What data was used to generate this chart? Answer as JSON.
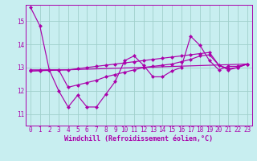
{
  "title": "",
  "xlabel": "Windchill (Refroidissement éolien,°C)",
  "background_color": "#c8eef0",
  "grid_color": "#a0d0cc",
  "line_color": "#aa00aa",
  "xlim": [
    -0.5,
    23.5
  ],
  "ylim": [
    10.5,
    15.7
  ],
  "yticks": [
    11,
    12,
    13,
    14,
    15
  ],
  "xticks": [
    0,
    1,
    2,
    3,
    4,
    5,
    6,
    7,
    8,
    9,
    10,
    11,
    12,
    13,
    14,
    15,
    16,
    17,
    18,
    19,
    20,
    21,
    22,
    23
  ],
  "series1_x": [
    0,
    1,
    2,
    3,
    4,
    5,
    6,
    7,
    8,
    9,
    10,
    11,
    12,
    13,
    14,
    15,
    16,
    17,
    18,
    19,
    20,
    21,
    22,
    23
  ],
  "series1_y": [
    15.6,
    14.8,
    12.9,
    12.0,
    11.3,
    11.8,
    11.3,
    11.3,
    11.85,
    12.4,
    13.3,
    13.5,
    13.1,
    12.6,
    12.6,
    12.85,
    13.0,
    14.35,
    13.95,
    13.3,
    12.9,
    13.05,
    13.05,
    13.15
  ],
  "series2_x": [
    0,
    1,
    2,
    3,
    4,
    5,
    6,
    7,
    8,
    9,
    10,
    11,
    12,
    13,
    14,
    15,
    16,
    17,
    18,
    19,
    20,
    21,
    22,
    23
  ],
  "series2_y": [
    12.9,
    12.9,
    12.9,
    12.9,
    12.15,
    12.25,
    12.35,
    12.45,
    12.6,
    12.7,
    12.8,
    12.9,
    13.0,
    13.05,
    13.1,
    13.15,
    13.25,
    13.35,
    13.5,
    13.55,
    13.1,
    12.9,
    13.0,
    13.15
  ],
  "series3_x": [
    0,
    1,
    2,
    3,
    4,
    5,
    6,
    7,
    8,
    9,
    10,
    11,
    12,
    13,
    14,
    15,
    16,
    17,
    18,
    19,
    20,
    21,
    22,
    23
  ],
  "series3_y": [
    12.85,
    12.87,
    12.9,
    12.9,
    12.9,
    12.95,
    13.0,
    13.05,
    13.1,
    13.15,
    13.2,
    13.25,
    13.3,
    13.35,
    13.4,
    13.45,
    13.5,
    13.55,
    13.6,
    13.65,
    13.1,
    12.95,
    13.0,
    13.15
  ],
  "series4_x": [
    0,
    23
  ],
  "series4_y": [
    12.85,
    13.15
  ],
  "tick_fontsize": 5.5,
  "xlabel_fontsize": 6.0
}
